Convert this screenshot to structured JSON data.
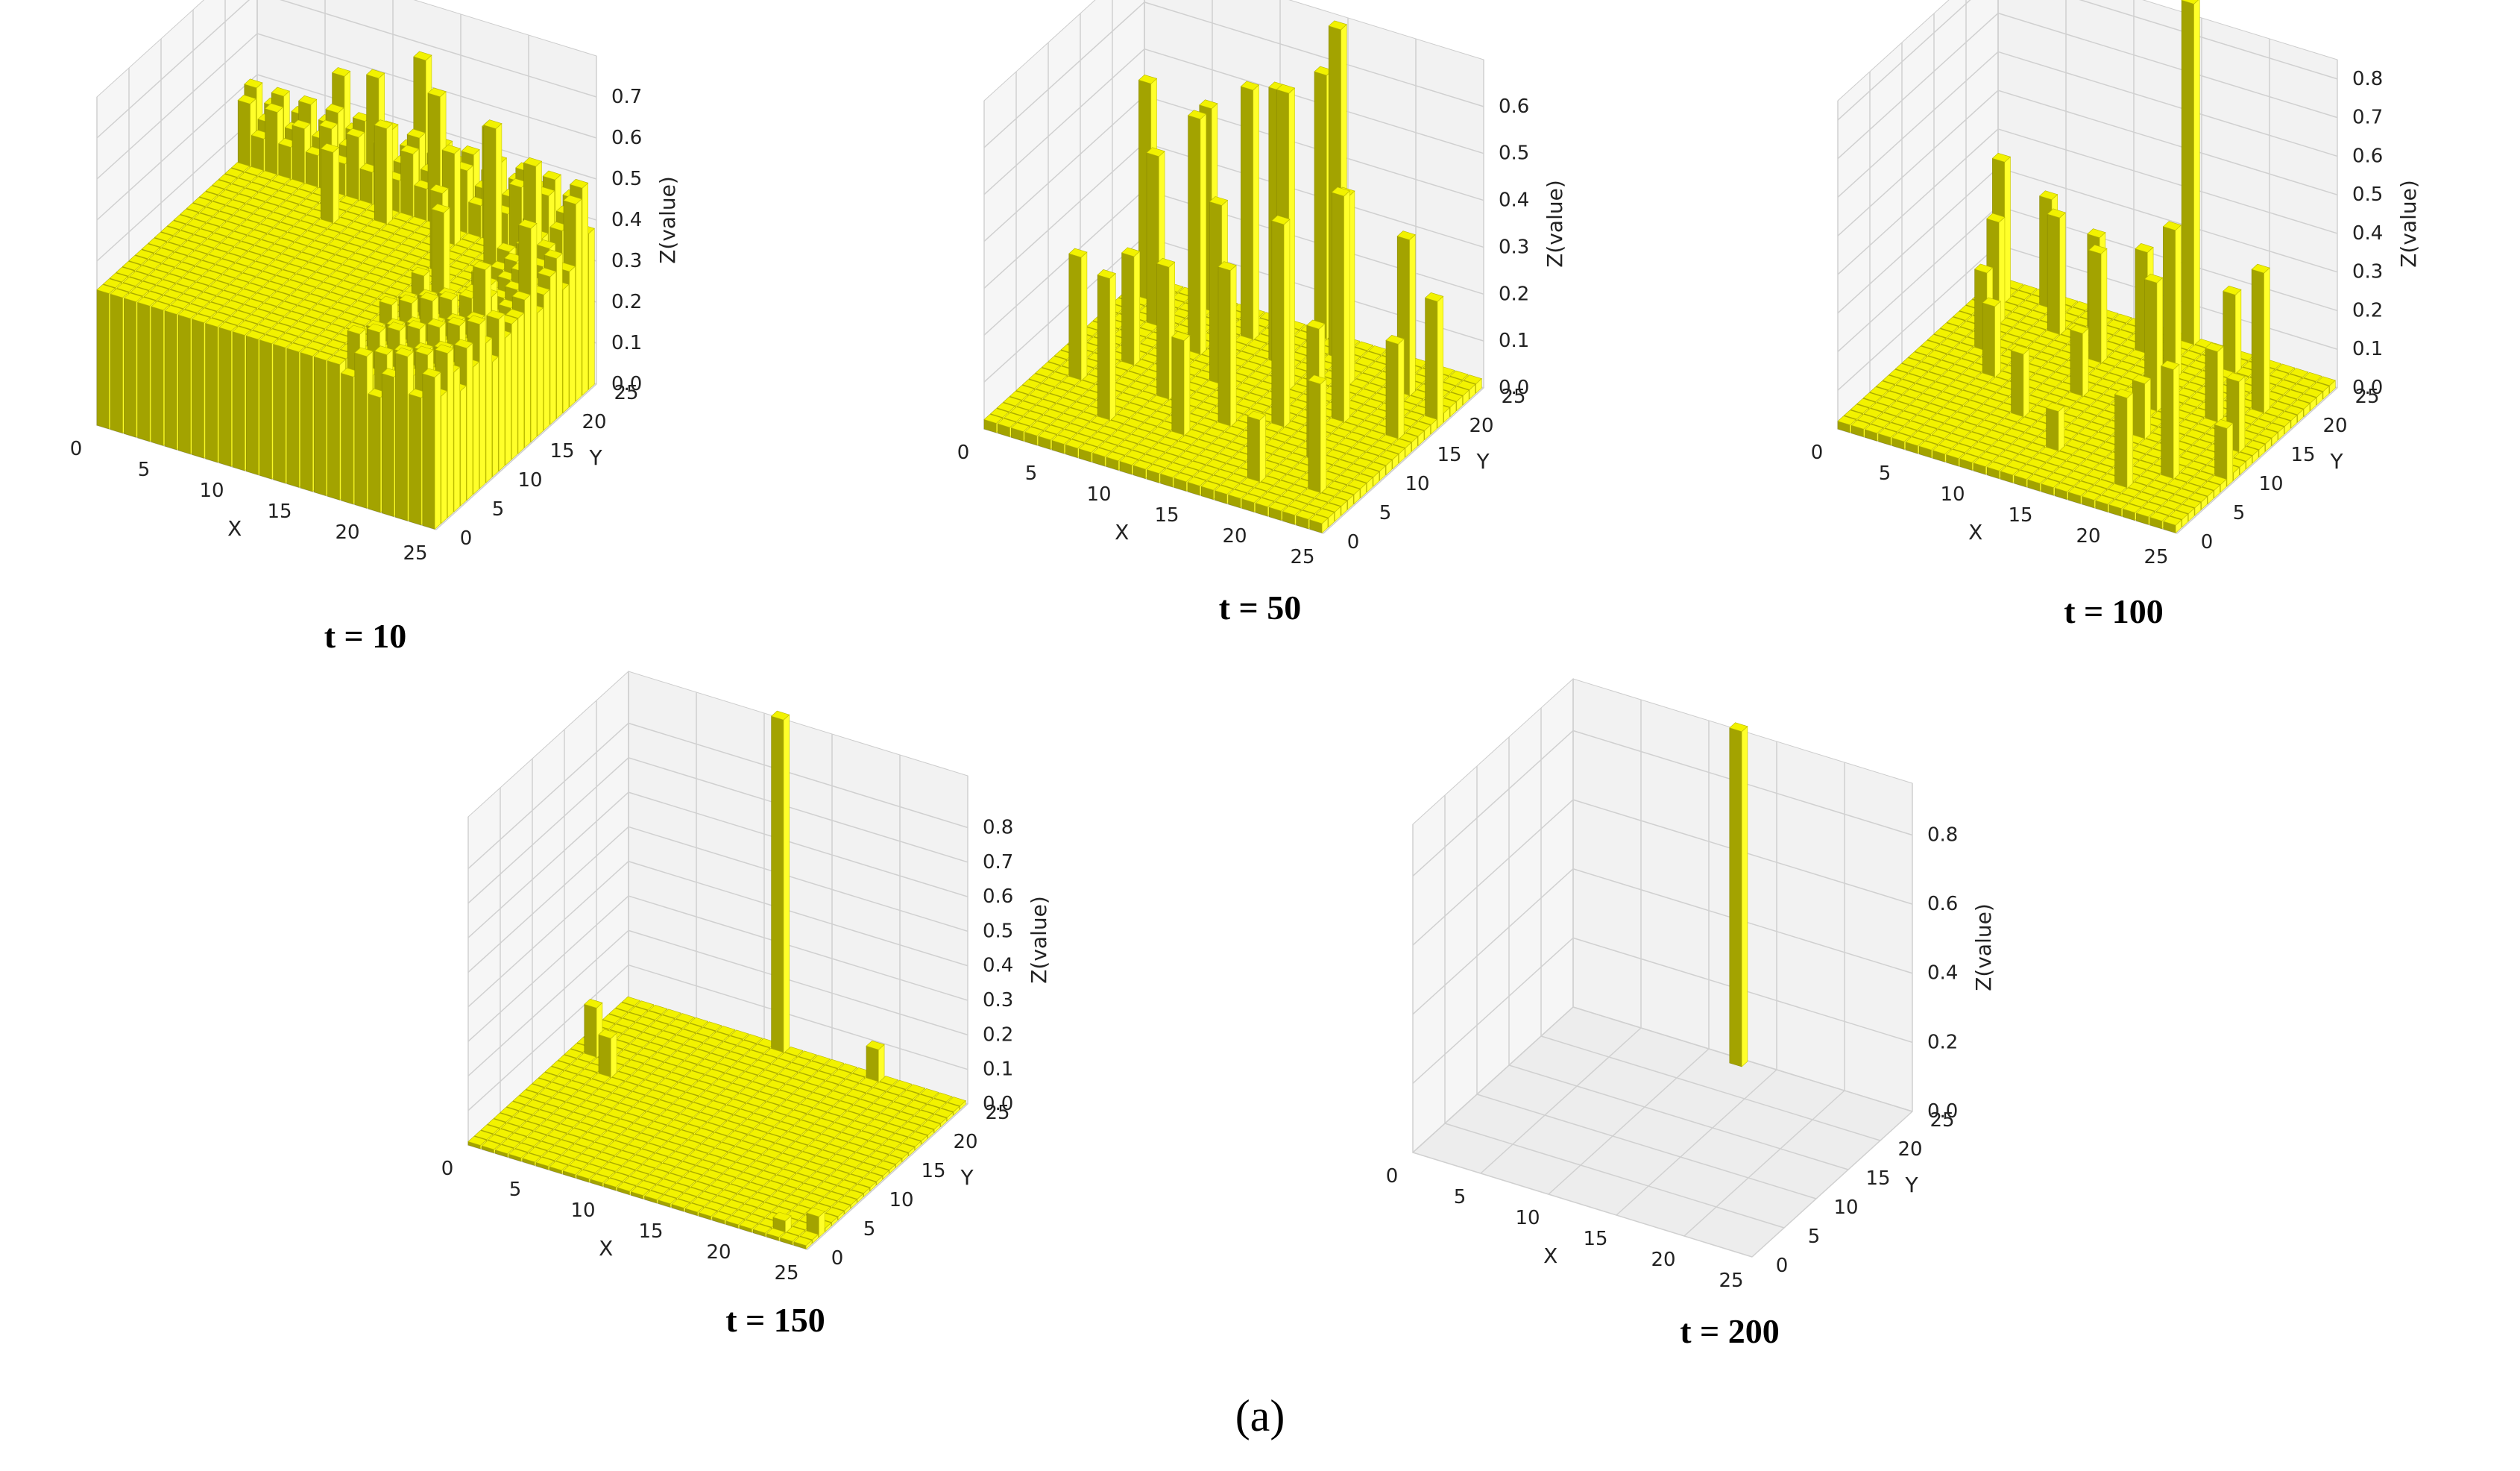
{
  "figure_label": "(a)",
  "colors": {
    "bar_top": "#f2f200",
    "bar_face_bright": "#ffff2a",
    "bar_face_dark": "#a3a300",
    "pane_floor": "#ededed",
    "pane_wall": "#f2f2f2",
    "grid": "#d0d0d0",
    "text": "#222222"
  },
  "chart_data": [
    {
      "type": "bar3d",
      "title": "t = 10",
      "xlabel": "X",
      "ylabel": "Y",
      "zlabel": "Z(value)",
      "x_ticks": [
        "0",
        "5",
        "10",
        "15",
        "20",
        "25"
      ],
      "y_ticks": [
        "0",
        "5",
        "10",
        "15",
        "20",
        "25"
      ],
      "z_ticks": [
        "0.0",
        "0.1",
        "0.2",
        "0.3",
        "0.4",
        "0.5",
        "0.6",
        "0.7"
      ],
      "xlim": [
        0,
        25
      ],
      "ylim": [
        0,
        25
      ],
      "zlim": [
        0,
        0.8
      ],
      "grid_size": 25,
      "pattern": "plateau",
      "base_value": 0.33,
      "peaks": [
        [
          4,
          22,
          0.46
        ],
        [
          6,
          24,
          0.58
        ],
        [
          9,
          23,
          0.62
        ],
        [
          12,
          24,
          0.68
        ],
        [
          14,
          22,
          0.64
        ],
        [
          16,
          20,
          0.55
        ],
        [
          18,
          22,
          0.6
        ],
        [
          20,
          18,
          0.68
        ],
        [
          22,
          20,
          0.58
        ],
        [
          24,
          15,
          0.52
        ],
        [
          23,
          10,
          0.48
        ],
        [
          21,
          6,
          0.44
        ],
        [
          19,
          12,
          0.55
        ],
        [
          17,
          16,
          0.52
        ],
        [
          11,
          20,
          0.56
        ],
        [
          8,
          18,
          0.5
        ]
      ]
    },
    {
      "type": "bar3d",
      "title": "t = 50",
      "xlabel": "X",
      "ylabel": "Y",
      "zlabel": "Z(value)",
      "x_ticks": [
        "0",
        "5",
        "10",
        "15",
        "20",
        "25"
      ],
      "y_ticks": [
        "0",
        "5",
        "10",
        "15",
        "20",
        "25"
      ],
      "z_ticks": [
        "0.0",
        "0.1",
        "0.2",
        "0.3",
        "0.4",
        "0.5",
        "0.6"
      ],
      "xlim": [
        0,
        25
      ],
      "ylim": [
        0,
        25
      ],
      "zlim": [
        0,
        0.7
      ],
      "grid_size": 25,
      "pattern": "sparse",
      "base_value": 0.02,
      "peaks": [
        [
          1,
          22,
          0.48
        ],
        [
          3,
          19,
          0.38
        ],
        [
          5,
          23,
          0.45
        ],
        [
          7,
          17,
          0.52
        ],
        [
          9,
          21,
          0.55
        ],
        [
          10,
          14,
          0.4
        ],
        [
          12,
          19,
          0.6
        ],
        [
          13,
          24,
          0.58
        ],
        [
          14,
          16,
          0.65
        ],
        [
          15,
          22,
          0.72
        ],
        [
          16,
          11,
          0.45
        ],
        [
          17,
          19,
          0.42
        ],
        [
          19,
          14,
          0.5
        ],
        [
          20,
          8,
          0.3
        ],
        [
          21,
          20,
          0.35
        ],
        [
          22,
          4,
          0.25
        ],
        [
          2,
          9,
          0.28
        ],
        [
          6,
          5,
          0.32
        ],
        [
          8,
          10,
          0.3
        ],
        [
          11,
          6,
          0.22
        ],
        [
          18,
          3,
          0.15
        ],
        [
          23,
          14,
          0.22
        ],
        [
          24,
          18,
          0.27
        ],
        [
          4,
          13,
          0.25
        ],
        [
          13,
          9,
          0.35
        ]
      ]
    },
    {
      "type": "bar3d",
      "title": "t = 100",
      "xlabel": "X",
      "ylabel": "Y",
      "zlabel": "Z(value)",
      "x_ticks": [
        "0",
        "5",
        "10",
        "15",
        "20",
        "25"
      ],
      "y_ticks": [
        "0",
        "5",
        "10",
        "15",
        "20",
        "25"
      ],
      "z_ticks": [
        "0.0",
        "0.1",
        "0.2",
        "0.3",
        "0.4",
        "0.5",
        "0.6",
        "0.7",
        "0.8"
      ],
      "xlim": [
        0,
        25
      ],
      "ylim": [
        0,
        25
      ],
      "zlim": [
        0,
        0.85
      ],
      "grid_size": 25,
      "pattern": "sparse",
      "base_value": 0.02,
      "peaks": [
        [
          1,
          22,
          0.38
        ],
        [
          2,
          19,
          0.28
        ],
        [
          4,
          23,
          0.3
        ],
        [
          6,
          20,
          0.32
        ],
        [
          8,
          22,
          0.26
        ],
        [
          10,
          18,
          0.3
        ],
        [
          12,
          21,
          0.28
        ],
        [
          14,
          24,
          0.9
        ],
        [
          15,
          19,
          0.4
        ],
        [
          16,
          14,
          0.35
        ],
        [
          18,
          22,
          0.22
        ],
        [
          20,
          15,
          0.2
        ],
        [
          22,
          18,
          0.38
        ],
        [
          23,
          12,
          0.2
        ],
        [
          24,
          8,
          0.15
        ],
        [
          5,
          12,
          0.2
        ],
        [
          9,
          8,
          0.18
        ],
        [
          13,
          5,
          0.12
        ],
        [
          19,
          3,
          0.25
        ],
        [
          21,
          6,
          0.3
        ],
        [
          3,
          15,
          0.22
        ],
        [
          11,
          13,
          0.18
        ],
        [
          17,
          10,
          0.16
        ]
      ]
    },
    {
      "type": "bar3d",
      "title": "t = 150",
      "xlabel": "X",
      "ylabel": "Y",
      "zlabel": "Z(value)",
      "x_ticks": [
        "0",
        "5",
        "10",
        "15",
        "20",
        "25"
      ],
      "y_ticks": [
        "0",
        "5",
        "10",
        "15",
        "20",
        "25"
      ],
      "z_ticks": [
        "0.0",
        "0.1",
        "0.2",
        "0.3",
        "0.4",
        "0.5",
        "0.6",
        "0.7",
        "0.8"
      ],
      "xlim": [
        0,
        25
      ],
      "ylim": [
        0,
        25
      ],
      "zlim": [
        0,
        0.95
      ],
      "grid_size": 25,
      "pattern": "sparse",
      "base_value": 0.01,
      "peaks": [
        [
          11,
          24,
          0.97
        ],
        [
          1,
          16,
          0.15
        ],
        [
          3,
          14,
          0.12
        ],
        [
          18,
          24,
          0.1
        ],
        [
          24,
          2,
          0.06
        ],
        [
          22,
          1,
          0.04
        ]
      ]
    },
    {
      "type": "bar3d",
      "title": "t = 200",
      "xlabel": "X",
      "ylabel": "Y",
      "zlabel": "Z(value)",
      "x_ticks": [
        "0",
        "5",
        "10",
        "15",
        "20",
        "25"
      ],
      "y_ticks": [
        "0",
        "5",
        "10",
        "15",
        "20",
        "25"
      ],
      "z_ticks": [
        "0.0",
        "0.2",
        "0.4",
        "0.6",
        "0.8"
      ],
      "xlim": [
        0,
        25
      ],
      "ylim": [
        0,
        25
      ],
      "zlim": [
        0,
        0.95
      ],
      "grid_size": 25,
      "pattern": "sparse",
      "base_value": 0.0,
      "peaks": [
        [
          12,
          24,
          0.97
        ]
      ]
    }
  ]
}
